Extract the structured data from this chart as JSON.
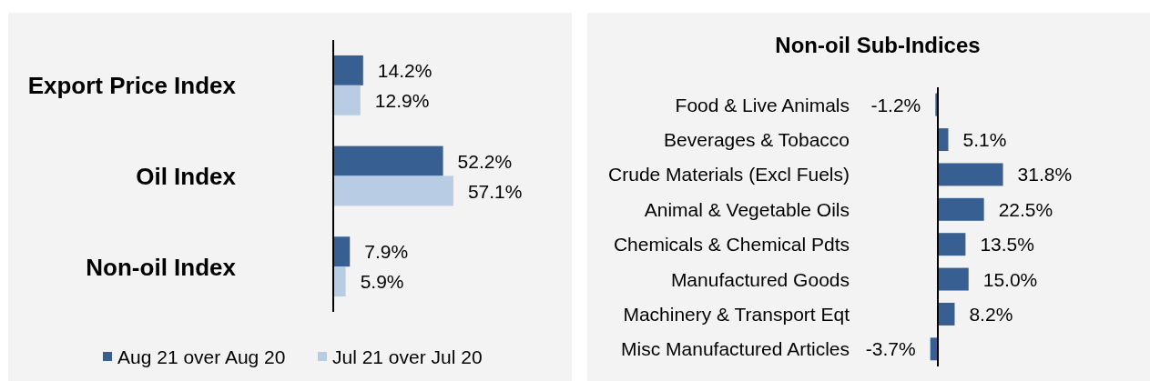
{
  "chart_data": [
    {
      "type": "bar",
      "orientation": "horizontal",
      "categories": [
        "Export Price Index",
        "Oil Index",
        "Non-oil Index"
      ],
      "series": [
        {
          "name": "Aug 21 over Aug 20",
          "color": "#375f91",
          "values": [
            14.2,
            52.2,
            7.9
          ],
          "value_labels": [
            "14.2%",
            "52.2%",
            "7.9%"
          ]
        },
        {
          "name": "Jul 21 over Jul 20",
          "color": "#b8cce4",
          "values": [
            12.9,
            57.1,
            5.9
          ],
          "value_labels": [
            "12.9%",
            "57.1%",
            "5.9%"
          ]
        }
      ],
      "legend": "bottom"
    },
    {
      "type": "bar",
      "orientation": "horizontal",
      "title": "Non-oil Sub-Indices",
      "categories": [
        "Food & Live Animals",
        "Beverages & Tobacco",
        "Crude Materials (Excl Fuels)",
        "Animal & Vegetable Oils",
        "Chemicals & Chemical Pdts",
        "Manufactured Goods",
        "Machinery & Transport Eqt",
        "Misc Manufactured Articles"
      ],
      "values": [
        -1.2,
        5.1,
        31.8,
        22.5,
        13.5,
        15.0,
        8.2,
        -3.7
      ],
      "value_labels": [
        "-1.2%",
        "5.1%",
        "31.8%",
        "22.5%",
        "13.5%",
        "15.0%",
        "8.2%",
        "-3.7%"
      ],
      "color": "#375f91"
    }
  ]
}
